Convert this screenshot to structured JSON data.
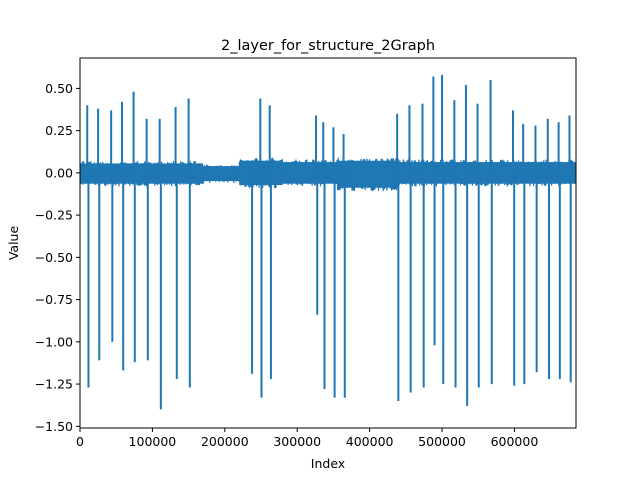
{
  "chart_data": {
    "type": "line",
    "title": "2_layer_for_structure_2Graph",
    "xlabel": "Index",
    "ylabel": "Value",
    "xlim": [
      0,
      685000
    ],
    "ylim": [
      -1.51,
      0.68
    ],
    "xticks": [
      0,
      100000,
      200000,
      300000,
      400000,
      500000,
      600000
    ],
    "xtick_labels": [
      "0",
      "100000",
      "200000",
      "300000",
      "400000",
      "500000",
      "600000"
    ],
    "yticks": [
      -1.5,
      -1.25,
      -1.0,
      -0.75,
      -0.5,
      -0.25,
      0.0,
      0.25,
      0.5
    ],
    "ytick_labels": [
      "−1.50",
      "−1.25",
      "−1.00",
      "−0.75",
      "−0.50",
      "−0.25",
      "0.00",
      "0.25",
      "0.50"
    ],
    "grid": false,
    "series": [
      {
        "color": "#1f77b4",
        "baseline_band": [
          {
            "x0": 0,
            "x1": 170000,
            "lo": -0.08,
            "hi": 0.07
          },
          {
            "x0": 170000,
            "x1": 220000,
            "lo": -0.06,
            "hi": 0.05
          },
          {
            "x0": 220000,
            "x1": 280000,
            "lo": -0.09,
            "hi": 0.09
          },
          {
            "x0": 280000,
            "x1": 355000,
            "lo": -0.08,
            "hi": 0.08
          },
          {
            "x0": 355000,
            "x1": 440000,
            "lo": -0.11,
            "hi": 0.09
          },
          {
            "x0": 440000,
            "x1": 685000,
            "lo": -0.08,
            "hi": 0.08
          }
        ],
        "spikes": [
          {
            "x": 10000,
            "max": 0.4,
            "min": -1.27
          },
          {
            "x": 25000,
            "max": 0.38,
            "min": -1.11
          },
          {
            "x": 43000,
            "max": 0.37,
            "min": -1.0
          },
          {
            "x": 58000,
            "max": 0.42,
            "min": -1.17
          },
          {
            "x": 74000,
            "max": 0.48,
            "min": -1.12
          },
          {
            "x": 92000,
            "max": 0.32,
            "min": -1.11
          },
          {
            "x": 110000,
            "max": 0.32,
            "min": -1.4
          },
          {
            "x": 132000,
            "max": 0.39,
            "min": -1.22
          },
          {
            "x": 150000,
            "max": 0.44,
            "min": -1.27
          },
          {
            "x": 236000,
            "max": 0.02,
            "min": -1.19
          },
          {
            "x": 249000,
            "max": 0.44,
            "min": -1.33
          },
          {
            "x": 262000,
            "max": 0.4,
            "min": -1.22
          },
          {
            "x": 326000,
            "max": 0.34,
            "min": -0.84
          },
          {
            "x": 336000,
            "max": 0.3,
            "min": -1.28
          },
          {
            "x": 350000,
            "max": 0.27,
            "min": -1.33
          },
          {
            "x": 364000,
            "max": 0.23,
            "min": -1.33
          },
          {
            "x": 438000,
            "max": 0.35,
            "min": -1.35
          },
          {
            "x": 455000,
            "max": 0.4,
            "min": -1.3
          },
          {
            "x": 473000,
            "max": 0.41,
            "min": -1.27
          },
          {
            "x": 488000,
            "max": 0.57,
            "min": -1.02
          },
          {
            "x": 500000,
            "max": 0.58,
            "min": -1.25
          },
          {
            "x": 517000,
            "max": 0.43,
            "min": -1.27
          },
          {
            "x": 533000,
            "max": 0.52,
            "min": -1.38
          },
          {
            "x": 549000,
            "max": 0.41,
            "min": -1.27
          },
          {
            "x": 567000,
            "max": 0.55,
            "min": -1.25
          },
          {
            "x": 598000,
            "max": 0.37,
            "min": -1.26
          },
          {
            "x": 612000,
            "max": 0.29,
            "min": -1.25
          },
          {
            "x": 629000,
            "max": 0.28,
            "min": -1.18
          },
          {
            "x": 646000,
            "max": 0.32,
            "min": -1.22
          },
          {
            "x": 661000,
            "max": 0.3,
            "min": -1.22
          },
          {
            "x": 676000,
            "max": 0.34,
            "min": -1.24
          }
        ]
      }
    ]
  }
}
